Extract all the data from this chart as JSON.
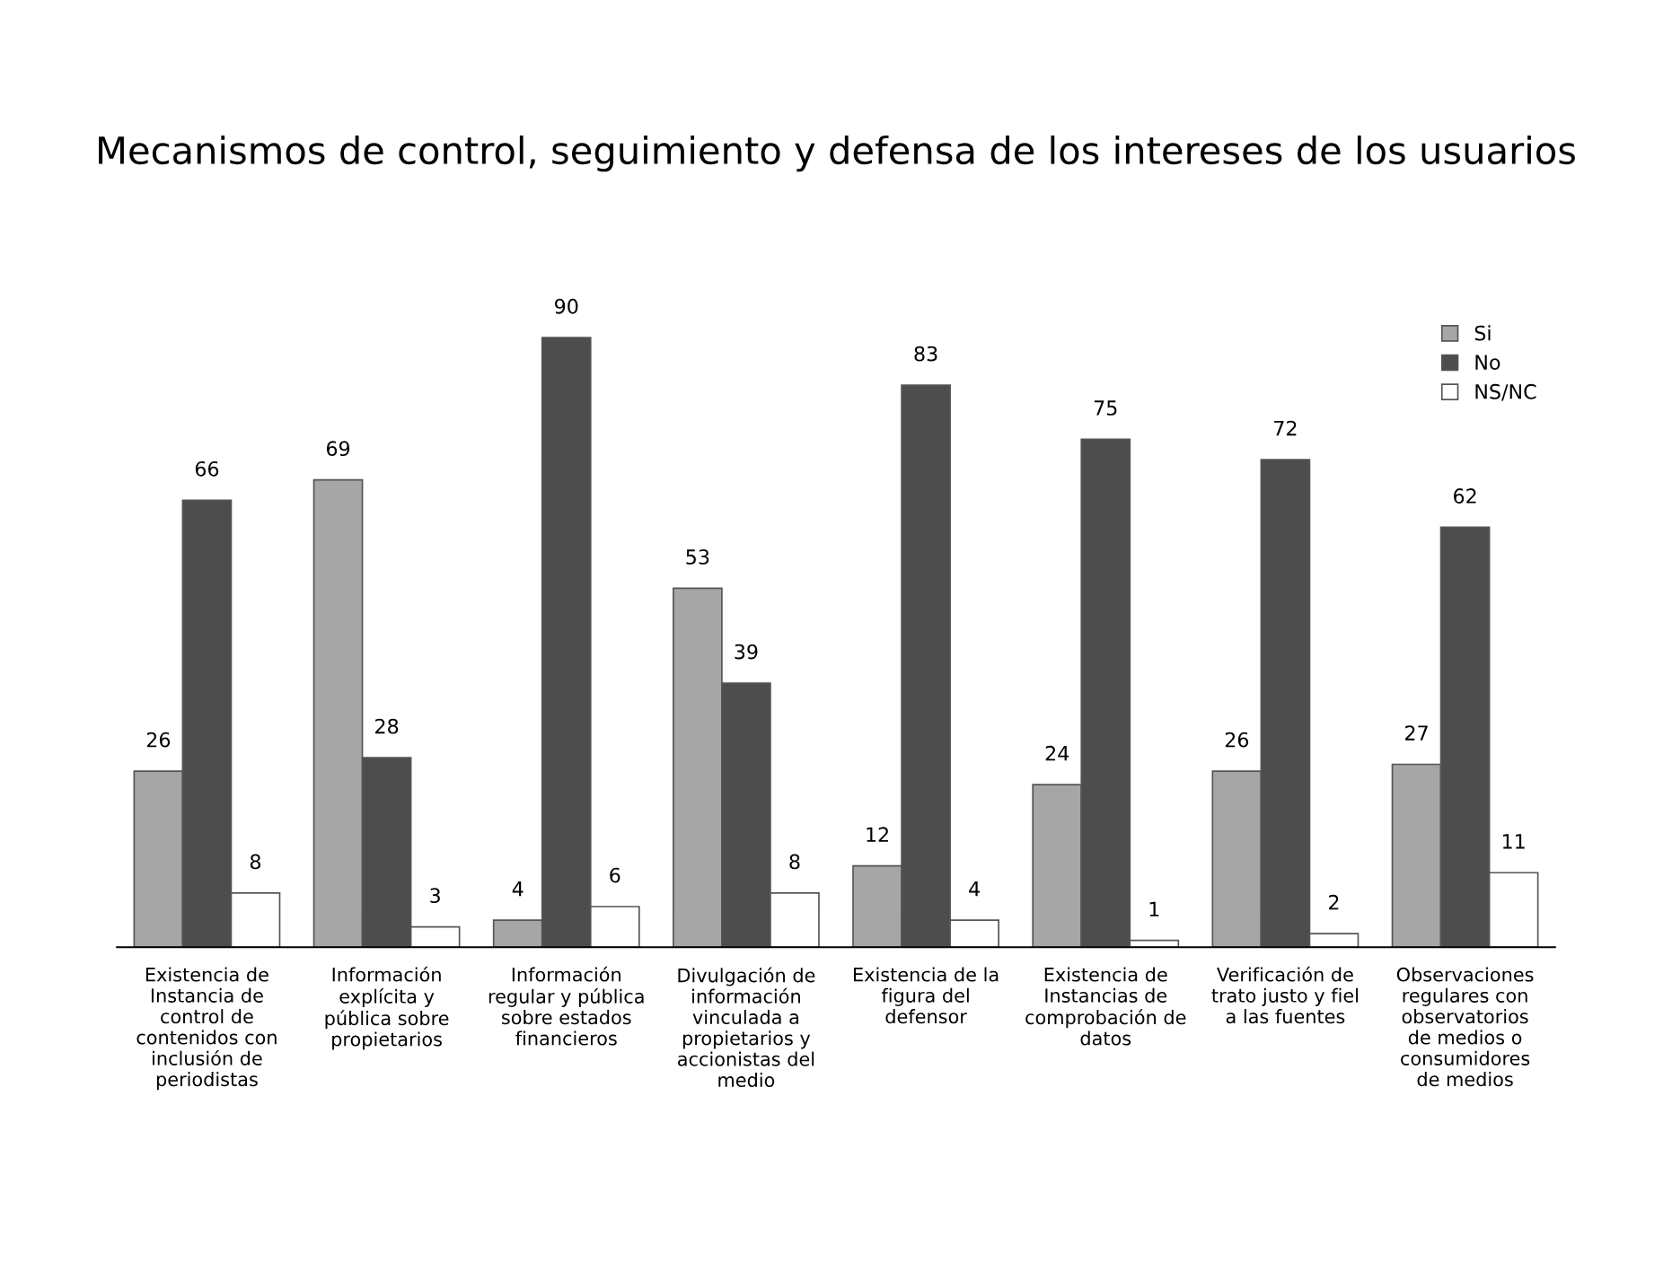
{
  "chart_data": {
    "type": "bar",
    "title": "Mecanismos de control, seguimiento y defensa de los intereses de los usuarios",
    "categories": [
      "Existencia de\nInstancia de\ncontrol de\ncontenidos con\ninclusión de\nperiodistas",
      "Información\nexplícita y\npública sobre\npropietarios",
      "Información\nregular y pública\nsobre estados\nfinancieros",
      "Divulgación de\ninformación\nvinculada a\npropietarios y\naccionistas del\nmedio",
      "Existencia de la\nfigura del\ndefensor",
      "Existencia de\nInstancias de\ncomprobación de\ndatos",
      "Verificación de\ntrato justo y fiel\na las fuentes",
      "Observaciones\nregulares con\nobservatorios\nde medios o\nconsumidores\nde medios"
    ],
    "series": [
      {
        "name": "Si",
        "color": "#a6a6a6",
        "values": [
          26,
          69,
          4,
          53,
          12,
          24,
          26,
          27
        ]
      },
      {
        "name": "No",
        "color": "#4d4d4d",
        "values": [
          66,
          28,
          90,
          39,
          83,
          75,
          72,
          62
        ]
      },
      {
        "name": "NS/NC",
        "color": "#ffffff",
        "values": [
          8,
          3,
          6,
          8,
          4,
          1,
          2,
          11
        ]
      }
    ],
    "data_labels": true,
    "legend": "top right",
    "grid": false
  }
}
